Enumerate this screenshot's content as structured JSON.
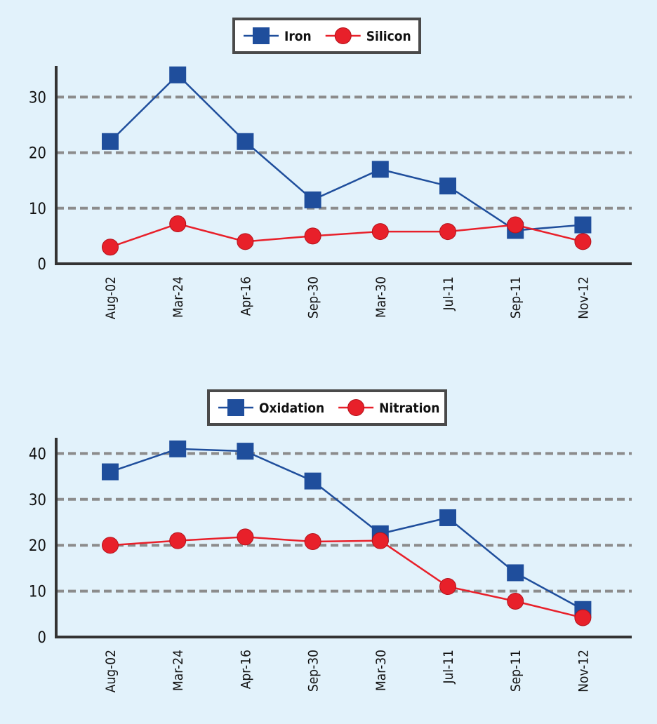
{
  "chart_data": [
    {
      "type": "line",
      "categories": [
        "Aug-02",
        "Mar-24",
        "Apr-16",
        "Sep-30",
        "Mar-30",
        "Jul-11",
        "Sep-11",
        "Nov-12"
      ],
      "series": [
        {
          "name": "Iron",
          "marker": "square",
          "color": "#1f4e9c",
          "values": [
            22,
            34,
            22,
            11.5,
            17,
            14,
            6,
            7
          ]
        },
        {
          "name": "Silicon",
          "marker": "circle",
          "color": "#e8202a",
          "values": [
            3,
            7.2,
            4,
            5,
            5.8,
            5.8,
            7,
            4
          ]
        }
      ],
      "yticks": [
        0,
        10,
        20,
        30
      ],
      "ylim": [
        0,
        35
      ],
      "grid": true,
      "legend_position": "top-center"
    },
    {
      "type": "line",
      "categories": [
        "Aug-02",
        "Mar-24",
        "Apr-16",
        "Sep-30",
        "Mar-30",
        "Jul-11",
        "Sep-11",
        "Nov-12"
      ],
      "series": [
        {
          "name": "Oxidation",
          "marker": "square",
          "color": "#1f4e9c",
          "values": [
            36,
            41,
            40.5,
            34,
            22.5,
            26,
            14,
            6
          ]
        },
        {
          "name": "Nitration",
          "marker": "circle",
          "color": "#e8202a",
          "values": [
            20,
            21,
            21.8,
            20.8,
            21,
            11,
            7.8,
            4.2
          ]
        }
      ],
      "yticks": [
        0,
        10,
        20,
        30,
        40
      ],
      "ylim": [
        0,
        43
      ],
      "grid": true,
      "legend_position": "top-center"
    }
  ],
  "colors": {
    "background": "#e2f2fb",
    "series_blue": "#1f4e9c",
    "series_red": "#e8202a"
  }
}
